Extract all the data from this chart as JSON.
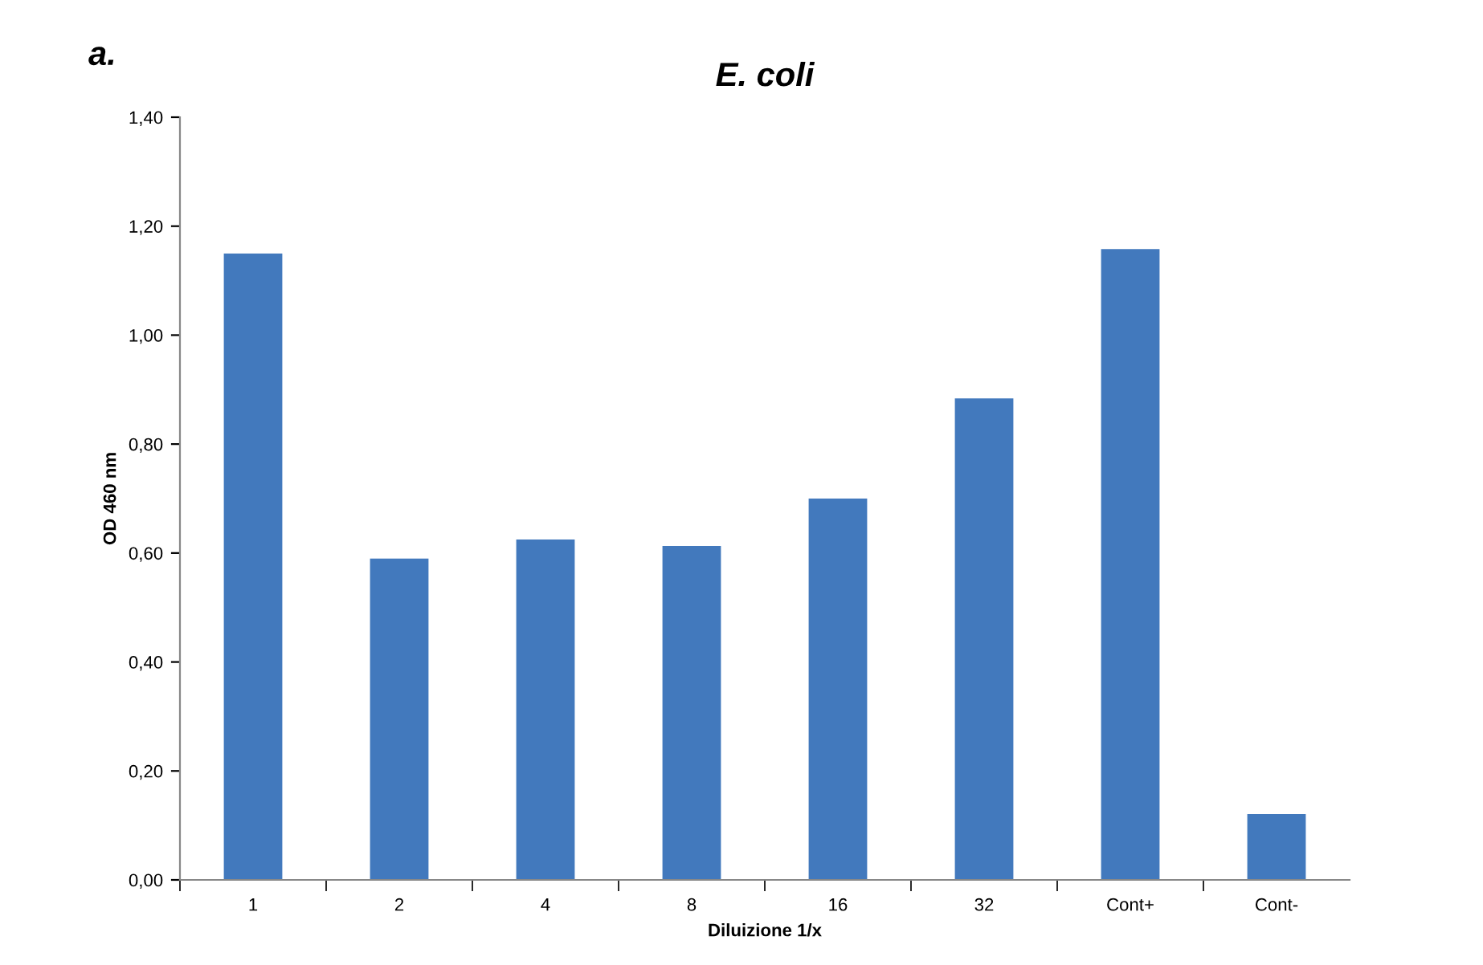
{
  "chart_data": {
    "type": "bar",
    "title": "E. coli",
    "xlabel": "Diluizione 1/x",
    "ylabel": "OD 460 nm",
    "annotations": [
      "a."
    ],
    "categories": [
      "1",
      "2",
      "4",
      "8",
      "16",
      "32",
      "Cont+",
      "Cont-"
    ],
    "values": [
      1.15,
      0.59,
      0.625,
      0.613,
      0.7,
      0.884,
      1.158,
      0.121
    ],
    "color": "#4279bd",
    "ylim": [
      0,
      1.4
    ],
    "yticks": [
      {
        "value": 0,
        "label": "0,00"
      },
      {
        "value": 0.2,
        "label": "0,20"
      },
      {
        "value": 0.4,
        "label": "0,40"
      },
      {
        "value": 0.6,
        "label": "0,60"
      },
      {
        "value": 0.8,
        "label": "0,80"
      },
      {
        "value": 1.0,
        "label": "1,00"
      },
      {
        "value": 1.2,
        "label": "1,20"
      },
      {
        "value": 1.4,
        "label": "1,40"
      }
    ],
    "grid": false,
    "legend": false
  }
}
